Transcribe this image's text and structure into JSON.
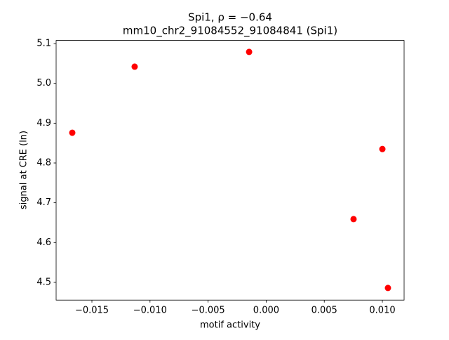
{
  "chart_data": {
    "type": "scatter",
    "title": "Spi1, ρ = −0.64",
    "subtitle": "mm10_chr2_91084552_91084841 (Spi1)",
    "x_label": "motif activity",
    "y_label": "signal at CRE (ln)",
    "color": "#ff0000",
    "x": [
      -0.01669,
      -0.01132,
      -0.00147,
      0.01,
      0.00752,
      0.01048
    ],
    "values": [
      4.876,
      5.042,
      5.079,
      4.835,
      4.659,
      4.486
    ],
    "xlim": [
      -0.01808,
      0.01187
    ],
    "ylim": [
      4.4555,
      5.1078
    ],
    "xticks": [
      {
        "value": -0.015,
        "label": "−0.015"
      },
      {
        "value": -0.01,
        "label": "−0.010"
      },
      {
        "value": -0.005,
        "label": "−0.005"
      },
      {
        "value": 0,
        "label": "0.000"
      },
      {
        "value": 0.005,
        "label": "0.005"
      },
      {
        "value": 0.01,
        "label": "0.010"
      }
    ],
    "yticks": [
      4.5,
      4.6,
      4.7,
      4.8,
      4.9,
      {
        "value": 5.0,
        "label": "5.0"
      },
      5.1
    ]
  }
}
